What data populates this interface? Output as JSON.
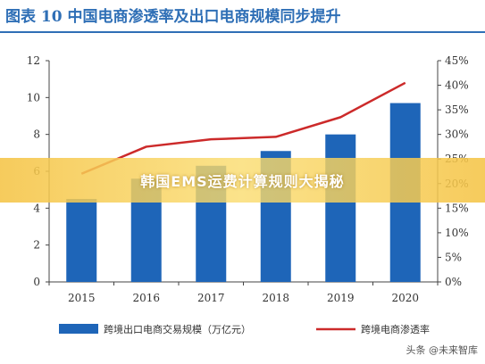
{
  "header": {
    "title": "图表 10   中国电商渗透率及出口电商规模同步提升"
  },
  "banner": {
    "text": "韩国EMS运费计算规则大揭秘"
  },
  "watermark": {
    "text": "头条 @未来智库"
  },
  "colors": {
    "bar": "#1e65b8",
    "line": "#cc2a2a",
    "title": "#2f6fb6"
  },
  "chart_data": {
    "type": "bar",
    "categories": [
      "2015",
      "2016",
      "2017",
      "2018",
      "2019",
      "2020"
    ],
    "series": [
      {
        "name": "跨境出口电商交易规模（万亿元）",
        "type": "bar",
        "axis": "left",
        "values": [
          4.5,
          5.6,
          6.3,
          7.1,
          8.0,
          9.7
        ]
      },
      {
        "name": "跨境电商渗透率",
        "type": "line",
        "axis": "right",
        "values": [
          22,
          27.5,
          29,
          29.5,
          33.5,
          40.5
        ]
      }
    ],
    "y_left": {
      "ylim": [
        0,
        12
      ],
      "ticks": [
        "0",
        "2",
        "4",
        "6",
        "8",
        "10",
        "12"
      ]
    },
    "y_right": {
      "ylim": [
        0,
        45
      ],
      "ticks": [
        "0%",
        "5%",
        "10%",
        "15%",
        "20%",
        "25%",
        "30%",
        "35%",
        "40%",
        "45%"
      ]
    },
    "legend": "bottom"
  }
}
